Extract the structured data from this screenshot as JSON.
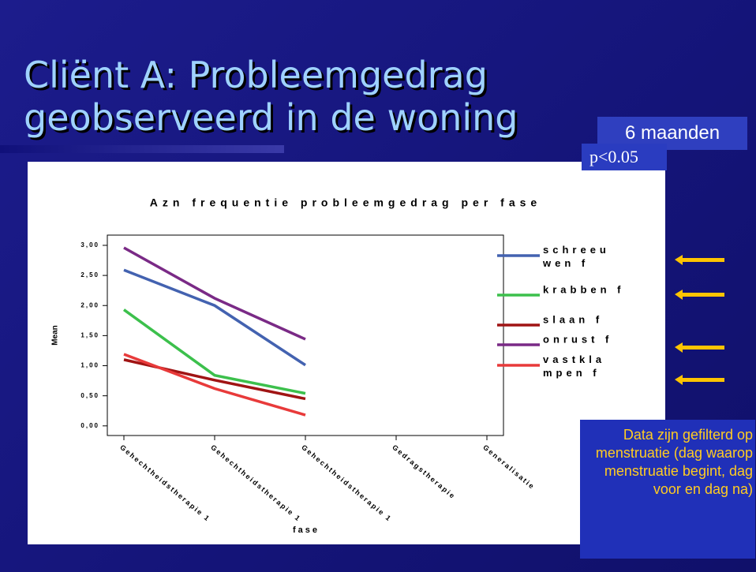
{
  "slide": {
    "title": [
      "Cliënt A: Probleemgedrag",
      "geobserveerd in de woning"
    ],
    "period": "6 maanden",
    "significance": "p<0.05",
    "note": "Data zijn gefilterd op menstruatie (dag waarop menstruatie begint, dag voor en dag na)"
  },
  "chart_data": {
    "type": "line",
    "title": "Azn frequentie probleemgedrag per fase",
    "y_label": "Mean",
    "x_label": "fase",
    "categories": [
      "Gehechtheidstherapie 1",
      "Gehechtheidstherapie 1",
      "Gehechtheidstherapie 1",
      "Gedragstherapie",
      "Generalisatie"
    ],
    "series": [
      {
        "name": "schreeuwen f",
        "color": "#4362b0",
        "values": [
          2.59,
          2.0,
          1.01,
          null,
          null
        ]
      },
      {
        "name": "krabben f",
        "color": "#3cc04c",
        "values": [
          1.93,
          0.84,
          0.54,
          null,
          null
        ]
      },
      {
        "name": "slaan f",
        "color": "#a01414",
        "values": [
          1.1,
          0.76,
          0.45,
          null,
          null
        ]
      },
      {
        "name": "onrust f",
        "color": "#7a2a86",
        "values": [
          2.96,
          2.12,
          1.44,
          null,
          null
        ]
      },
      {
        "name": "vastklampen f",
        "color": "#e83a3a",
        "values": [
          1.19,
          0.62,
          0.18,
          null,
          null
        ]
      }
    ],
    "ylim": [
      -0.16,
      3.17
    ],
    "yticks": [
      {
        "value": 0,
        "label": "0,00"
      },
      {
        "value": 0.5,
        "label": "0,50"
      },
      {
        "value": 1,
        "label": "1,00"
      },
      {
        "value": 1.5,
        "label": "1,50"
      },
      {
        "value": 2,
        "label": "2,00"
      },
      {
        "value": 2.5,
        "label": "2,50"
      },
      {
        "value": 3,
        "label": "3,00"
      }
    ],
    "legend": "right"
  }
}
